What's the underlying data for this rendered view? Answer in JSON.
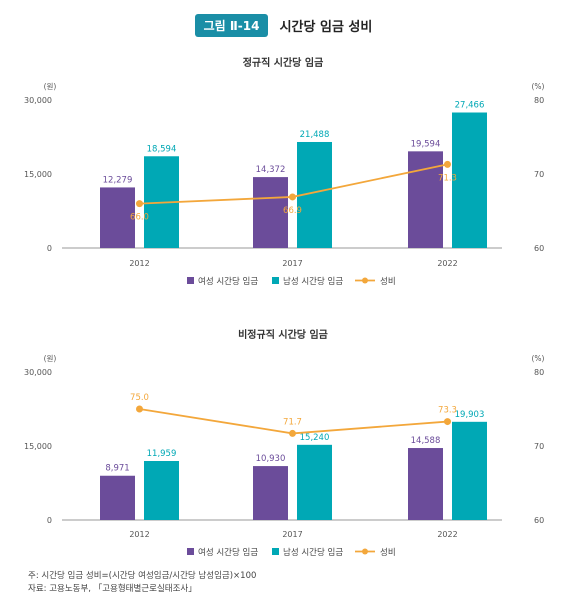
{
  "figure": {
    "badge": "그림 Ⅱ-14",
    "title": "시간당 임금 성비"
  },
  "colors": {
    "female": "#6b4c9a",
    "male": "#00a8b5",
    "ratio": "#f3a73b",
    "badge": "#1a8ea6"
  },
  "chart_data": [
    {
      "type": "bar",
      "title": "정규직 시간당 임금",
      "categories": [
        "2012",
        "2017",
        "2022"
      ],
      "y_unit_left": "(원)",
      "y_unit_right": "(%)",
      "ylim": [
        0,
        30000
      ],
      "yticks": [
        "0",
        "15,000",
        "30,000"
      ],
      "y2lim": [
        60,
        80
      ],
      "y2ticks": [
        "60",
        "70",
        "80"
      ],
      "series": [
        {
          "name": "여성 시간당 임금",
          "kind": "bar",
          "values": [
            12279,
            14372,
            19594
          ],
          "labels": [
            "12,279",
            "14,372",
            "19,594"
          ]
        },
        {
          "name": "남성 시간당 임금",
          "kind": "bar",
          "values": [
            18594,
            21488,
            27466
          ],
          "labels": [
            "18,594",
            "21,488",
            "27,466"
          ]
        },
        {
          "name": "성비",
          "kind": "line",
          "axis": "right",
          "values": [
            66.0,
            66.9,
            71.3
          ],
          "labels": [
            "66.0",
            "66.9",
            "71.3"
          ]
        }
      ],
      "legend": [
        "여성 시간당 임금",
        "남성 시간당 임금",
        "성비"
      ],
      "legend_position": "bottom"
    },
    {
      "type": "bar",
      "title": "비정규직 시간당 임금",
      "categories": [
        "2012",
        "2017",
        "2022"
      ],
      "y_unit_left": "(원)",
      "y_unit_right": "(%)",
      "ylim": [
        0,
        30000
      ],
      "yticks": [
        "0",
        "15,000",
        "30,000"
      ],
      "y2lim": [
        60,
        80
      ],
      "y2ticks": [
        "60",
        "70",
        "80"
      ],
      "series": [
        {
          "name": "여성 시간당 임금",
          "kind": "bar",
          "values": [
            8971,
            10930,
            14588
          ],
          "labels": [
            "8,971",
            "10,930",
            "14,588"
          ]
        },
        {
          "name": "남성 시간당 임금",
          "kind": "bar",
          "values": [
            11959,
            15240,
            19903
          ],
          "labels": [
            "11,959",
            "15,240",
            "19,903"
          ]
        },
        {
          "name": "성비",
          "kind": "line",
          "axis": "right",
          "values": [
            75.0,
            71.7,
            73.3
          ],
          "labels": [
            "75.0",
            "71.7",
            "73.3"
          ]
        }
      ],
      "legend": [
        "여성 시간당 임금",
        "남성 시간당 임금",
        "성비"
      ],
      "legend_position": "bottom"
    }
  ],
  "notes": {
    "note": "주: 시간당 임금 성비=(시간당 여성임금/시간당 남성임금)×100",
    "source": "자료: 고용노동부, 「고용형태별근로실태조사」"
  }
}
